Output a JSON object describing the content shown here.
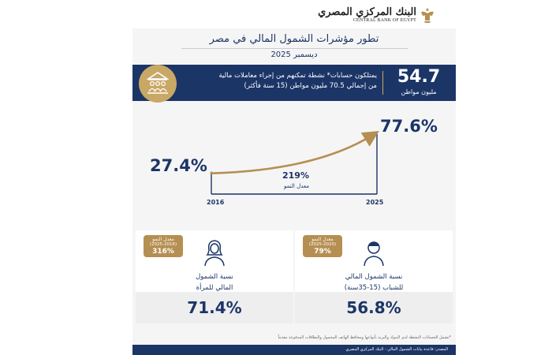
{
  "header": {
    "bank_name_ar": "البنك المركزي المصري",
    "bank_name_en": "CENTRAL BANK OF EGYPT",
    "title": "تطور مؤشرات الشمول المالي في مصر",
    "date": "ديسمبر 2025"
  },
  "banner": {
    "value": "54.7",
    "unit": "مليون مواطن",
    "text": "يمتلكون حسابات* نشطة تمكنهم من إجراء معاملات مالية من إجمالي 70.5 مليون مواطن (15 سنة فأكثر)",
    "icon": "bank-users-icon"
  },
  "chart_data": {
    "type": "line",
    "x": [
      2016,
      2025
    ],
    "y": [
      27.4,
      77.6
    ],
    "data_labels": [
      "27.4%",
      "77.6%"
    ],
    "tick_labels": [
      "2016",
      "2025"
    ],
    "growth_rate": "219%",
    "growth_rate_label": "معدل النمو",
    "ylim": [
      0,
      100
    ],
    "colors": {
      "line": "#b58f52",
      "axis": "#1c3567"
    }
  },
  "panels": {
    "women": {
      "badge_label": "معدل النمو",
      "badge_period": "(2025-2016)",
      "badge_value": "316%",
      "label_line1": "نسبة الشمول",
      "label_line2": "المالي للمرأة",
      "value": "71.4%",
      "icon": "woman-icon"
    },
    "youth": {
      "badge_label": "معدل النمو",
      "badge_period": "(2025-2020)",
      "badge_value": "79%",
      "label_line1": "نسبة الشمول المالي",
      "label_line2": "للشباب (15-35سنة)",
      "value": "56.8%",
      "icon": "young-man-icon"
    }
  },
  "footnote": "*تشمل الحسابات النشطة لدى البنوك والبريد بأنواعها ومحافظ الهاتف المحمول والبطاقات المدفوعة مقدماً",
  "source": "المصدر: قاعدة بيانات الشمول المالي - البنك المركزي المصري",
  "colors": {
    "navy": "#1c3567",
    "gold": "#b58f52",
    "gold_light": "#c9a765",
    "panel_bg": "#f5f5f5"
  }
}
